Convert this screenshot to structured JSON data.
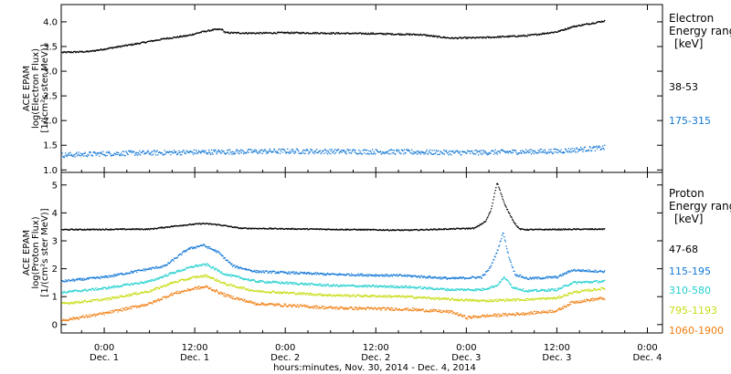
{
  "chart_data": {
    "xlabel": "hours:minutes, Nov. 30, 2014 - Dec. 4, 2014",
    "x_ticks": [
      {
        "hour": 0,
        "time": "0:00",
        "day": "Dec. 1"
      },
      {
        "hour": 12,
        "time": "12:00",
        "day": "Dec. 1"
      },
      {
        "hour": 24,
        "time": "0:00",
        "day": "Dec. 2"
      },
      {
        "hour": 36,
        "time": "12:00",
        "day": "Dec. 2"
      },
      {
        "hour": 48,
        "time": "0:00",
        "day": "Dec. 3"
      },
      {
        "hour": 60,
        "time": "12:00",
        "day": "Dec. 3"
      },
      {
        "hour": 72,
        "time": "0:00",
        "day": "Dec. 4"
      }
    ],
    "xlim": [
      -5.7,
      74
    ],
    "data_end_hour": 66.3,
    "panels": [
      {
        "type": "scatter",
        "ylabel_lines": [
          "ACE EPAM",
          "log(Electron Flux)",
          "[1/(cm²s ster MeV)]"
        ],
        "ylim": [
          0.95,
          4.35
        ],
        "y_ticks": [
          1.0,
          1.5,
          2.0,
          2.5,
          3.0,
          3.5,
          4.0
        ],
        "y_tick_labels": [
          "1.0",
          "1.5",
          "2.0",
          "2.5",
          "3.0",
          "3.5",
          "4.0"
        ],
        "legend_title_lines": [
          "Electron",
          "Energy ranges",
          "[keV]"
        ],
        "series": [
          {
            "name": "38-53",
            "color": "#000000",
            "noise": 0.015,
            "x": [
              -5.7,
              -2,
              0,
              4,
              8,
              11,
              13,
              14.5,
              15.5,
              16,
              20,
              24,
              30,
              36,
              42,
              44,
              46,
              50,
              56,
              60,
              62,
              66.3
            ],
            "y": [
              3.38,
              3.4,
              3.45,
              3.55,
              3.66,
              3.72,
              3.8,
              3.84,
              3.85,
              3.78,
              3.77,
              3.78,
              3.77,
              3.76,
              3.74,
              3.7,
              3.67,
              3.68,
              3.72,
              3.8,
              3.9,
              4.02
            ]
          },
          {
            "name": "175-315",
            "color": "#1177d6",
            "noise": 0.05,
            "x": [
              -5.7,
              0,
              12,
              24,
              36,
              48,
              60,
              66.3
            ],
            "y": [
              1.3,
              1.33,
              1.36,
              1.38,
              1.37,
              1.35,
              1.38,
              1.45
            ]
          }
        ]
      },
      {
        "type": "scatter",
        "ylabel_lines": [
          "ACE EPAM",
          "log(Proton Flux)",
          "[1/(cm²s ster MeV)]"
        ],
        "ylim": [
          -0.3,
          5.45
        ],
        "y_ticks": [
          0,
          1,
          2,
          3,
          4,
          5
        ],
        "y_tick_labels": [
          "0",
          "1",
          "2",
          "3",
          "4",
          "5"
        ],
        "legend_title_lines": [
          "Proton",
          "Energy ranges",
          "[keV]"
        ],
        "series": [
          {
            "name": "47-68",
            "color": "#000000",
            "noise": 0.02,
            "x": [
              -5.7,
              6,
              10,
              13,
              15,
              18,
              40,
              49,
              50.5,
              51.2,
              51.6,
              52,
              52.4,
              53,
              53.6,
              54.4,
              55,
              56,
              66.3
            ],
            "y": [
              3.4,
              3.42,
              3.55,
              3.62,
              3.58,
              3.45,
              3.38,
              3.45,
              3.7,
              4.1,
              4.6,
              5.1,
              4.8,
              4.3,
              4.0,
              3.6,
              3.42,
              3.4,
              3.42
            ]
          },
          {
            "name": "115-195",
            "color": "#1177d6",
            "noise": 0.04,
            "x": [
              -5.7,
              0,
              6,
              8,
              9,
              11,
              13,
              15,
              17,
              20,
              30,
              40,
              46,
              50,
              51,
              52,
              52.8,
              53.6,
              54.4,
              56,
              60,
              62,
              66.3
            ],
            "y": [
              1.55,
              1.7,
              2.0,
              2.1,
              2.3,
              2.7,
              2.85,
              2.6,
              2.1,
              1.9,
              1.8,
              1.75,
              1.65,
              1.7,
              2.0,
              2.6,
              3.3,
              2.4,
              1.8,
              1.65,
              1.7,
              1.95,
              1.9
            ]
          },
          {
            "name": "310-580",
            "color": "#22cfcf",
            "noise": 0.04,
            "x": [
              -5.7,
              0,
              6,
              9,
              12,
              13.5,
              16,
              20,
              30,
              40,
              46,
              50,
              52,
              53,
              54,
              56,
              60,
              62,
              66.3
            ],
            "y": [
              1.15,
              1.3,
              1.55,
              1.85,
              2.1,
              2.15,
              1.8,
              1.55,
              1.4,
              1.35,
              1.25,
              1.25,
              1.4,
              1.7,
              1.35,
              1.2,
              1.25,
              1.5,
              1.55
            ]
          },
          {
            "name": "795-1193",
            "color": "#c8dc10",
            "noise": 0.04,
            "x": [
              -5.7,
              0,
              6,
              9,
              12,
              13.5,
              16,
              20,
              30,
              40,
              46,
              50,
              56,
              60,
              62,
              66.3
            ],
            "y": [
              0.75,
              0.9,
              1.2,
              1.5,
              1.7,
              1.75,
              1.45,
              1.2,
              1.05,
              1.0,
              0.9,
              0.85,
              0.9,
              0.95,
              1.15,
              1.3
            ]
          },
          {
            "name": "1060-1900",
            "color": "#f07c0c",
            "noise": 0.05,
            "x": [
              -5.7,
              0,
              6,
              9,
              12,
              13.5,
              16,
              20,
              30,
              40,
              46,
              48,
              50,
              56,
              60,
              62,
              66.3
            ],
            "y": [
              0.15,
              0.4,
              0.75,
              1.1,
              1.3,
              1.35,
              1.05,
              0.75,
              0.6,
              0.55,
              0.45,
              0.25,
              0.3,
              0.4,
              0.5,
              0.8,
              0.95
            ]
          }
        ]
      }
    ]
  }
}
